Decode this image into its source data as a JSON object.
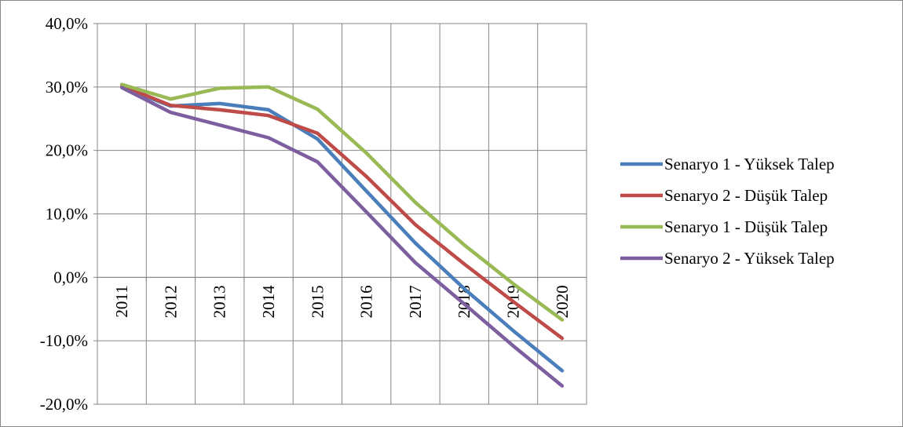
{
  "chart_data": {
    "type": "line",
    "title": "",
    "xlabel": "",
    "ylabel": "",
    "categories": [
      "2011",
      "2012",
      "2013",
      "2014",
      "2015",
      "2016",
      "2017",
      "2018",
      "2019",
      "2020"
    ],
    "y_ticks": [
      "40,0%",
      "30,0%",
      "20,0%",
      "10,0%",
      "0,0%",
      "-10,0%",
      "-20,0%"
    ],
    "ylim": [
      -20,
      40
    ],
    "grid": true,
    "legend_position": "right",
    "series": [
      {
        "name": "Senaryo 1 - Yüksek Talep",
        "color": "#4a7ebb",
        "values": [
          30.0,
          27.0,
          27.4,
          26.4,
          21.8,
          13.6,
          5.4,
          -1.8,
          -8.4,
          -14.7
        ]
      },
      {
        "name": "Senaryo 2 - Düşük Talep",
        "color": "#be4b48",
        "values": [
          30.2,
          27.1,
          26.4,
          25.5,
          22.7,
          15.9,
          8.3,
          2.1,
          -3.8,
          -9.6
        ]
      },
      {
        "name": "Senaryo 1 - Düşük Talep",
        "color": "#98b954",
        "values": [
          30.4,
          28.1,
          29.8,
          30.0,
          26.5,
          19.6,
          11.8,
          5.1,
          -1.0,
          -6.7
        ]
      },
      {
        "name": "Senaryo 2 - Yüksek Talep",
        "color": "#7d5fa0",
        "values": [
          29.9,
          26.0,
          24.0,
          22.0,
          18.2,
          10.3,
          2.3,
          -4.2,
          -10.8,
          -17.1
        ]
      }
    ]
  }
}
